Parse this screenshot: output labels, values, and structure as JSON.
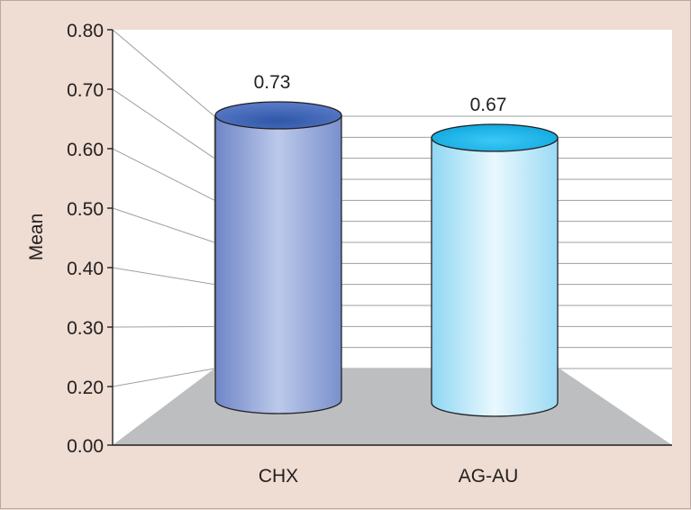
{
  "chart_data": {
    "type": "bar",
    "style": "3d-cylinder",
    "title": "",
    "xlabel": "",
    "ylabel": "Mean",
    "ylim": [
      0,
      0.8
    ],
    "yticks": [
      "0.00",
      "0.20",
      "0.30",
      "0.40",
      "0.50",
      "0.60",
      "0.70",
      "0.80"
    ],
    "categories": [
      "CHX",
      "AG-AU"
    ],
    "values": [
      0.73,
      0.67
    ],
    "data_labels": [
      "0.73",
      "0.67"
    ],
    "series": [
      {
        "values": [
          0.73,
          0.67
        ]
      }
    ],
    "grid": true,
    "legend": "none",
    "colors": {
      "page_background": "#efdcd2",
      "plot_background": "#ffffff",
      "floor": "#bcbec0",
      "gridline": "#9d9fa2",
      "bar_CHX": "#8aa0d6",
      "bar_CHX_top": "#3f67b5",
      "bar_AG-AU": "#a7ddf5",
      "bar_AG-AU_top": "#1fb5e8"
    }
  }
}
